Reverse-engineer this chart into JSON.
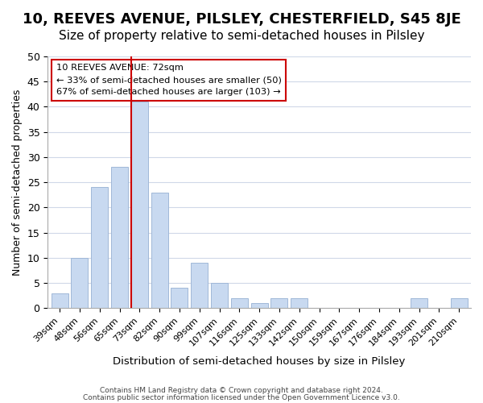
{
  "title": "10, REEVES AVENUE, PILSLEY, CHESTERFIELD, S45 8JE",
  "subtitle": "Size of property relative to semi-detached houses in Pilsley",
  "xlabel": "Distribution of semi-detached houses by size in Pilsley",
  "ylabel": "Number of semi-detached properties",
  "bar_labels": [
    "39sqm",
    "48sqm",
    "56sqm",
    "65sqm",
    "73sqm",
    "82sqm",
    "90sqm",
    "99sqm",
    "107sqm",
    "116sqm",
    "125sqm",
    "133sqm",
    "142sqm",
    "150sqm",
    "159sqm",
    "167sqm",
    "176sqm",
    "184sqm",
    "193sqm",
    "201sqm",
    "210sqm"
  ],
  "bar_values": [
    3,
    10,
    24,
    28,
    41,
    23,
    4,
    9,
    5,
    2,
    1,
    2,
    2,
    0,
    0,
    0,
    0,
    0,
    2,
    0,
    2
  ],
  "bar_color": "#c8d9f0",
  "bar_edge_color": "#a0b8d8",
  "red_line_index": 4,
  "ylim": [
    0,
    50
  ],
  "yticks": [
    0,
    5,
    10,
    15,
    20,
    25,
    30,
    35,
    40,
    45,
    50
  ],
  "annotation_title": "10 REEVES AVENUE: 72sqm",
  "annotation_line1": "← 33% of semi-detached houses are smaller (50)",
  "annotation_line2": "67% of semi-detached houses are larger (103) →",
  "annotation_box_color": "#ffffff",
  "annotation_box_edge": "#cc0000",
  "footer_line1": "Contains HM Land Registry data © Crown copyright and database right 2024.",
  "footer_line2": "Contains public sector information licensed under the Open Government Licence v3.0.",
  "title_fontsize": 13,
  "subtitle_fontsize": 11,
  "background_color": "#ffffff",
  "grid_color": "#d0d8e8"
}
